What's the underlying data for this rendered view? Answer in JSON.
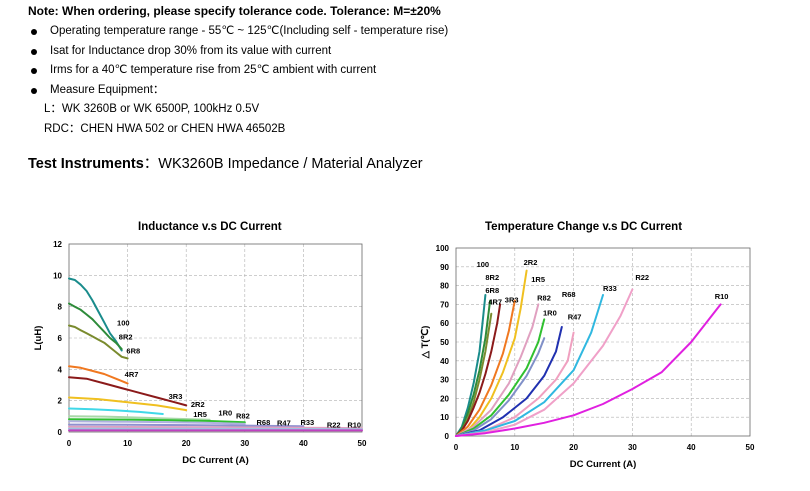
{
  "note": "Note: When ordering, please specify tolerance code. Tolerance: M=±20%",
  "bullets": [
    "Operating temperature range - 55℃ ~ 125℃(Including self - temperature rise)",
    "Isat for Inductance drop 30% from its value with current",
    "Irms for a 40℃ temperature rise from 25℃ ambient with current",
    "Measure Equipment："
  ],
  "measure_l": "L：WK 3260B or WK 6500P, 100kHz 0.5V",
  "measure_rdc": "RDC：CHEN HWA 502 or CHEN HWA 46502B",
  "test_label": "Test Instruments",
  "test_value": "：WK3260B Impedance / Material Analyzer",
  "chart_data": [
    {
      "type": "line",
      "title": "Inductance v.s DC Current",
      "xlabel": "DC Current (A)",
      "ylabel": "L(uH)",
      "xlim": [
        0,
        50
      ],
      "ylim": [
        0,
        12
      ],
      "xticks": [
        "0",
        "10",
        "20",
        "30",
        "40",
        "50"
      ],
      "yticks": [
        "0",
        "2",
        "4",
        "6",
        "8",
        "10",
        "12"
      ],
      "grid": true,
      "series": [
        {
          "name": "100",
          "color": "#1a8c8c",
          "x": [
            0,
            1,
            2,
            3,
            4,
            5,
            6,
            7,
            8,
            9
          ],
          "y": [
            9.8,
            9.7,
            9.4,
            9.0,
            8.4,
            7.7,
            7.0,
            6.3,
            5.8,
            5.2
          ]
        },
        {
          "name": "8R2",
          "color": "#2e8b3a",
          "x": [
            0,
            1,
            2,
            3,
            4,
            5,
            6,
            7,
            8,
            9
          ],
          "y": [
            8.2,
            8.0,
            7.8,
            7.5,
            7.2,
            6.8,
            6.4,
            6.0,
            5.7,
            5.3
          ]
        },
        {
          "name": "6R8",
          "color": "#7a8b2e",
          "x": [
            0,
            1,
            2,
            3,
            4,
            5,
            6,
            7,
            8,
            9,
            10
          ],
          "y": [
            6.8,
            6.7,
            6.5,
            6.3,
            6.1,
            5.9,
            5.7,
            5.4,
            5.1,
            4.8,
            4.7
          ]
        },
        {
          "name": "4R7",
          "color": "#f07820",
          "x": [
            0,
            2,
            4,
            6,
            8,
            10
          ],
          "y": [
            4.2,
            4.1,
            3.9,
            3.7,
            3.4,
            3.1
          ]
        },
        {
          "name": "3R3",
          "color": "#8b1a1a",
          "x": [
            0,
            3,
            6,
            9,
            12,
            15,
            18,
            20
          ],
          "y": [
            3.5,
            3.4,
            3.1,
            2.8,
            2.5,
            2.2,
            1.9,
            1.7
          ]
        },
        {
          "name": "2R2",
          "color": "#f0c020",
          "x": [
            0,
            5,
            10,
            15,
            20
          ],
          "y": [
            2.2,
            2.1,
            1.9,
            1.7,
            1.4
          ]
        },
        {
          "name": "1R5",
          "color": "#40d8e8",
          "x": [
            0,
            4,
            8,
            12,
            16
          ],
          "y": [
            1.5,
            1.45,
            1.38,
            1.28,
            1.15
          ]
        },
        {
          "name": "1R0",
          "color": "#a8d8a8",
          "x": [
            0,
            6,
            12,
            18,
            24
          ],
          "y": [
            1.0,
            0.98,
            0.92,
            0.85,
            0.78
          ]
        },
        {
          "name": "R82",
          "color": "#30c030",
          "x": [
            0,
            8,
            16,
            24,
            30
          ],
          "y": [
            0.82,
            0.8,
            0.76,
            0.7,
            0.62
          ]
        },
        {
          "name": "R68",
          "color": "#b0b0e0",
          "x": [
            0,
            8,
            16,
            24,
            30
          ],
          "y": [
            0.68,
            0.66,
            0.63,
            0.58,
            0.52
          ]
        },
        {
          "name": "R47",
          "color": "#9090d0",
          "x": [
            0,
            10,
            20,
            30,
            40
          ],
          "y": [
            0.47,
            0.46,
            0.44,
            0.41,
            0.37
          ]
        },
        {
          "name": "R33",
          "color": "#e0a0c0",
          "x": [
            0,
            10,
            20,
            30,
            40,
            50
          ],
          "y": [
            0.33,
            0.32,
            0.31,
            0.29,
            0.27,
            0.25
          ]
        },
        {
          "name": "R22",
          "color": "#a0c0e0",
          "x": [
            0,
            10,
            20,
            30,
            40,
            50
          ],
          "y": [
            0.22,
            0.21,
            0.21,
            0.2,
            0.19,
            0.18
          ]
        },
        {
          "name": "R10",
          "color": "#c040c0",
          "x": [
            0,
            10,
            20,
            30,
            40,
            50
          ],
          "y": [
            0.1,
            0.1,
            0.1,
            0.1,
            0.1,
            0.1
          ]
        }
      ],
      "labels": [
        {
          "text": "100",
          "x": 8.2,
          "y": 6.8
        },
        {
          "text": "8R2",
          "x": 8.5,
          "y": 5.9
        },
        {
          "text": "6R8",
          "x": 9.8,
          "y": 5.0
        },
        {
          "text": "4R7",
          "x": 9.5,
          "y": 3.5
        },
        {
          "text": "3R3",
          "x": 17.0,
          "y": 2.1
        },
        {
          "text": "2R2",
          "x": 20.8,
          "y": 1.6
        },
        {
          "text": "1R5",
          "x": 21.2,
          "y": 0.95
        },
        {
          "text": "1R0",
          "x": 25.5,
          "y": 1.05
        },
        {
          "text": "R82",
          "x": 28.5,
          "y": 0.85
        },
        {
          "text": "R68",
          "x": 32.0,
          "y": 0.45
        },
        {
          "text": "R47",
          "x": 35.5,
          "y": 0.4
        },
        {
          "text": "R33",
          "x": 39.5,
          "y": 0.45
        },
        {
          "text": "R22",
          "x": 44.0,
          "y": 0.3
        },
        {
          "text": "R10",
          "x": 47.5,
          "y": 0.3
        }
      ]
    },
    {
      "type": "line",
      "title": "Temperature Change v.s DC Current",
      "xlabel": "DC Current (A)",
      "ylabel": "△ T(℃)",
      "xlim": [
        0,
        50
      ],
      "ylim": [
        0,
        100
      ],
      "xticks": [
        "0",
        "10",
        "20",
        "30",
        "40",
        "50"
      ],
      "yticks": [
        "0",
        "10",
        "20",
        "30",
        "40",
        "50",
        "60",
        "70",
        "80",
        "90",
        "100"
      ],
      "grid": true,
      "series": [
        {
          "name": "100",
          "color": "#1a8c8c",
          "x": [
            0,
            1,
            2,
            3,
            4,
            4.5,
            5
          ],
          "y": [
            0,
            5,
            15,
            28,
            45,
            60,
            75
          ]
        },
        {
          "name": "8R2",
          "color": "#2e8b3a",
          "x": [
            0,
            1,
            2,
            3,
            4,
            5,
            5.8
          ],
          "y": [
            0,
            4,
            12,
            22,
            35,
            52,
            72
          ]
        },
        {
          "name": "6R8",
          "color": "#7a8b2e",
          "x": [
            0,
            1,
            2,
            3,
            4,
            5,
            6
          ],
          "y": [
            0,
            3,
            9,
            18,
            30,
            45,
            65
          ]
        },
        {
          "name": "4R7",
          "color": "#8b1a1a",
          "x": [
            0,
            1,
            2,
            3,
            4,
            5,
            6,
            7,
            7.5
          ],
          "y": [
            0,
            3,
            8,
            15,
            23,
            33,
            45,
            60,
            70
          ]
        },
        {
          "name": "3R3",
          "color": "#f07820",
          "x": [
            0,
            2,
            4,
            6,
            8,
            9,
            10
          ],
          "y": [
            0,
            5,
            14,
            27,
            44,
            56,
            72
          ]
        },
        {
          "name": "2R2",
          "color": "#f0c020",
          "x": [
            0,
            2,
            4,
            6,
            8,
            10,
            11,
            12
          ],
          "y": [
            0,
            3,
            10,
            20,
            34,
            52,
            68,
            88
          ]
        },
        {
          "name": "1R5",
          "color": "#e0a0c0",
          "x": [
            0,
            3,
            6,
            9,
            11,
            13,
            14
          ],
          "y": [
            0,
            5,
            14,
            28,
            42,
            58,
            70
          ]
        },
        {
          "name": "R82",
          "color": "#30c030",
          "x": [
            0,
            3,
            6,
            9,
            12,
            14,
            15
          ],
          "y": [
            0,
            4,
            11,
            22,
            36,
            50,
            62
          ]
        },
        {
          "name": "1R0",
          "color": "#8090c8",
          "x": [
            0,
            3,
            6,
            9,
            12,
            14,
            15
          ],
          "y": [
            0,
            3,
            9,
            19,
            32,
            44,
            52
          ]
        },
        {
          "name": "R47",
          "color": "#2030b0",
          "x": [
            0,
            4,
            8,
            12,
            15,
            17,
            18
          ],
          "y": [
            0,
            3,
            10,
            20,
            32,
            45,
            58
          ]
        },
        {
          "name": "R68",
          "color": "#f0a0c0",
          "x": [
            0,
            5,
            10,
            14,
            17,
            19,
            20
          ],
          "y": [
            0,
            3,
            10,
            20,
            30,
            40,
            55
          ]
        },
        {
          "name": "R33",
          "color": "#30b8e0",
          "x": [
            0,
            5,
            10,
            15,
            20,
            23,
            25
          ],
          "y": [
            0,
            3,
            8,
            18,
            35,
            55,
            75
          ]
        },
        {
          "name": "R22",
          "color": "#f0a0c8",
          "x": [
            0,
            5,
            10,
            15,
            20,
            25,
            28,
            30
          ],
          "y": [
            0,
            2,
            6,
            14,
            28,
            48,
            64,
            78
          ]
        },
        {
          "name": "R10",
          "color": "#e020e0",
          "x": [
            0,
            5,
            10,
            15,
            20,
            25,
            30,
            35,
            40,
            45
          ],
          "y": [
            0,
            1.5,
            4,
            7,
            11,
            17,
            25,
            34,
            50,
            70
          ]
        }
      ],
      "labels": [
        {
          "text": "100",
          "x": 3.5,
          "y": 90
        },
        {
          "text": "8R2",
          "x": 5.0,
          "y": 83
        },
        {
          "text": "6R8",
          "x": 5.0,
          "y": 76
        },
        {
          "text": "4R7",
          "x": 5.5,
          "y": 70
        },
        {
          "text": "3R3",
          "x": 8.3,
          "y": 71
        },
        {
          "text": "2R2",
          "x": 11.5,
          "y": 91
        },
        {
          "text": "1R5",
          "x": 12.8,
          "y": 82
        },
        {
          "text": "R82",
          "x": 13.8,
          "y": 72
        },
        {
          "text": "1R0",
          "x": 14.8,
          "y": 64
        },
        {
          "text": "R68",
          "x": 18.0,
          "y": 74
        },
        {
          "text": "R47",
          "x": 19.0,
          "y": 62
        },
        {
          "text": "R33",
          "x": 25.0,
          "y": 77
        },
        {
          "text": "R22",
          "x": 30.5,
          "y": 83
        },
        {
          "text": "R10",
          "x": 44.0,
          "y": 73
        }
      ]
    }
  ]
}
